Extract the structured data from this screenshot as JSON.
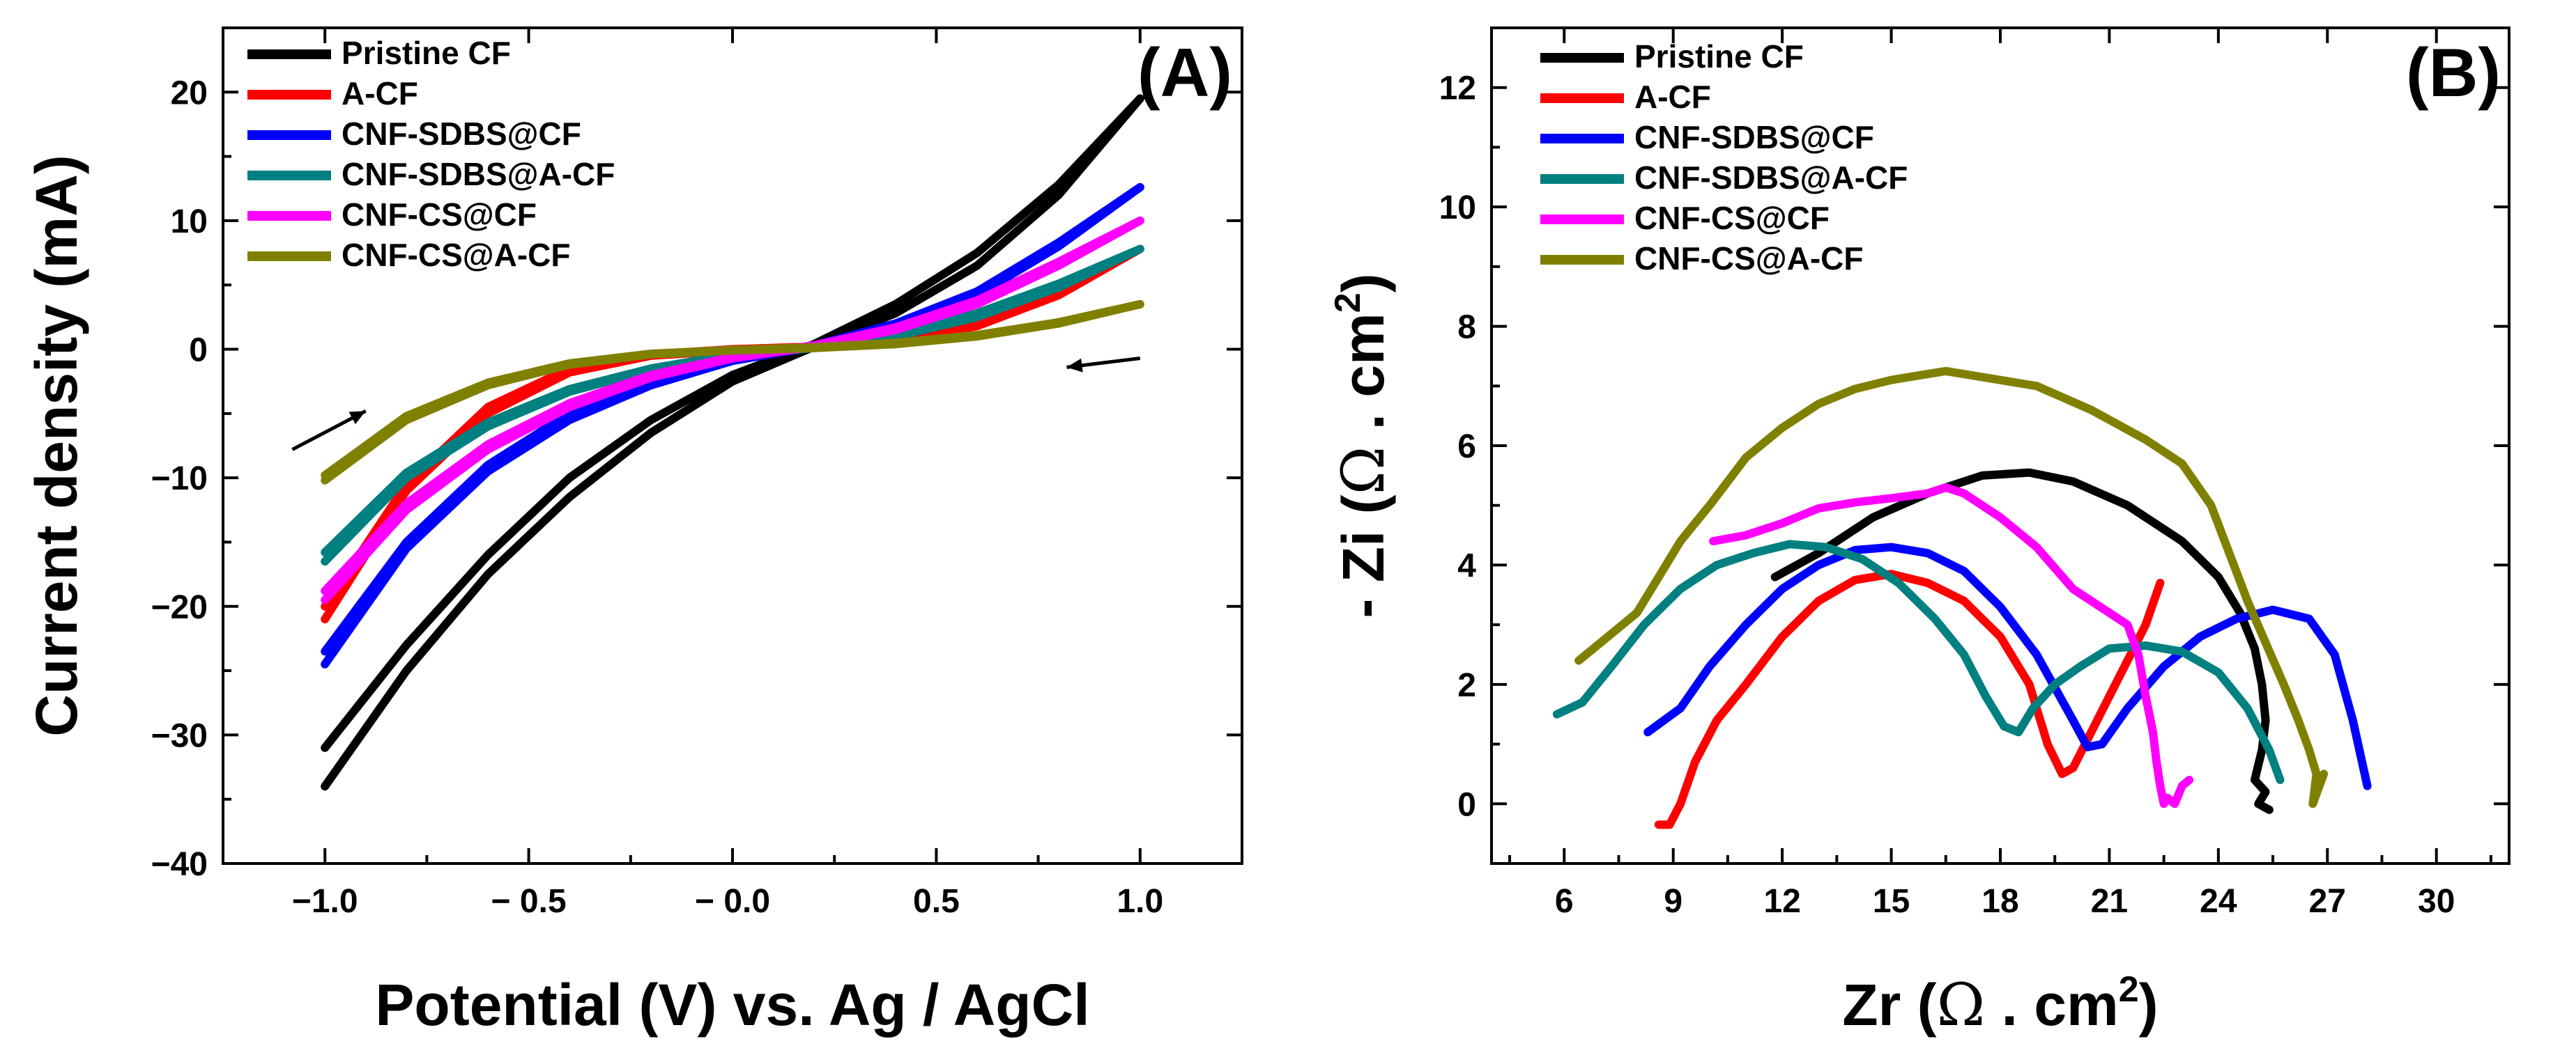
{
  "chart_data": [
    {
      "panel": "(A)",
      "type": "line",
      "xlabel": "Potential (V) vs. Ag / AgCl",
      "ylabel": "Current density (mA)",
      "xlim": [
        -1.25,
        1.25
      ],
      "ylim": [
        -40,
        25
      ],
      "xticks": [
        -1.0,
        -0.5,
        0.0,
        0.5,
        1.0
      ],
      "xtick_labels": [
        "−1.0",
        "− 0.5",
        "− 0.0",
        "0.5",
        "1.0"
      ],
      "yticks": [
        -40,
        -30,
        -20,
        -10,
        0,
        10,
        20
      ],
      "ytick_labels": [
        "−40",
        "−30",
        "−20",
        "−10",
        "0",
        "10",
        "20"
      ],
      "legend_position": "top-left",
      "series": [
        {
          "name": "Pristine CF",
          "color": "#000000",
          "x": [
            -1.0,
            -0.8,
            -0.6,
            -0.4,
            -0.2,
            0.0,
            0.2,
            0.4,
            0.6,
            0.8,
            1.0
          ],
          "forward": [
            -34,
            -25,
            -17.5,
            -11.5,
            -6.5,
            -2.5,
            0.2,
            2.8,
            6.5,
            12,
            19.5
          ],
          "backward": [
            -31,
            -23,
            -16,
            -10,
            -5.5,
            -2.0,
            0.4,
            3.5,
            7.5,
            12.8,
            19.5
          ]
        },
        {
          "name": "A-CF",
          "color": "#ff0000",
          "x": [
            -1.0,
            -0.8,
            -0.6,
            -0.4,
            -0.2,
            0.0,
            0.2,
            0.4,
            0.6,
            0.8,
            1.0
          ],
          "forward": [
            -21,
            -11,
            -5,
            -1.8,
            -0.5,
            -0.1,
            0.1,
            0.6,
            1.8,
            4.2,
            7.8
          ],
          "backward": [
            -20,
            -10.5,
            -4.5,
            -1.5,
            -0.4,
            0.0,
            0.2,
            0.8,
            2.2,
            4.8,
            7.8
          ]
        },
        {
          "name": "CNF-SDBS@CF",
          "color": "#0000ff",
          "x": [
            -1.0,
            -0.8,
            -0.6,
            -0.4,
            -0.2,
            0.0,
            0.2,
            0.4,
            0.6,
            0.8,
            1.0
          ],
          "forward": [
            -24.5,
            -15.5,
            -9.5,
            -5.5,
            -2.8,
            -0.9,
            0.2,
            1.8,
            4.2,
            8.0,
            12.6
          ],
          "backward": [
            -23.5,
            -15,
            -9,
            -5,
            -2.5,
            -0.7,
            0.3,
            2.0,
            4.5,
            8.3,
            12.6
          ]
        },
        {
          "name": "CNF-SDBS@A-CF",
          "color": "#008080",
          "x": [
            -1.0,
            -0.8,
            -0.6,
            -0.4,
            -0.2,
            0.0,
            0.2,
            0.4,
            0.6,
            0.8,
            1.0
          ],
          "forward": [
            -16.5,
            -10,
            -6,
            -3.3,
            -1.6,
            -0.5,
            0.1,
            1.0,
            2.5,
            4.8,
            7.8
          ],
          "backward": [
            -15.8,
            -9.6,
            -5.7,
            -3.1,
            -1.5,
            -0.4,
            0.2,
            1.2,
            2.8,
            5.1,
            7.8
          ]
        },
        {
          "name": "CNF-CS@CF",
          "color": "#ff00ff",
          "x": [
            -1.0,
            -0.8,
            -0.6,
            -0.4,
            -0.2,
            0.0,
            0.2,
            0.4,
            0.6,
            0.8,
            1.0
          ],
          "forward": [
            -19.5,
            -12.5,
            -7.8,
            -4.5,
            -2.2,
            -0.7,
            0.2,
            1.5,
            3.5,
            6.5,
            10.0
          ],
          "backward": [
            -18.8,
            -12,
            -7.4,
            -4.2,
            -2.0,
            -0.6,
            0.3,
            1.7,
            3.8,
            6.8,
            10.0
          ]
        },
        {
          "name": "CNF-CS@A-CF",
          "color": "#808000",
          "x": [
            -1.0,
            -0.8,
            -0.6,
            -0.4,
            -0.2,
            0.0,
            0.2,
            0.4,
            0.6,
            0.8,
            1.0
          ],
          "forward": [
            -10.2,
            -5.5,
            -2.8,
            -1.2,
            -0.4,
            -0.1,
            0.1,
            0.4,
            1.0,
            2.0,
            3.5
          ],
          "backward": [
            -9.8,
            -5.2,
            -2.6,
            -1.1,
            -0.35,
            -0.05,
            0.15,
            0.5,
            1.1,
            2.1,
            3.5
          ]
        }
      ],
      "annotations": [
        {
          "type": "arrow",
          "from": [
            -1.08,
            -7.8
          ],
          "to": [
            -0.9,
            -4.8
          ]
        },
        {
          "type": "arrow",
          "from": [
            1.0,
            -0.7
          ],
          "to": [
            0.82,
            -1.4
          ]
        }
      ]
    },
    {
      "panel": "(B)",
      "type": "line",
      "xlabel_main": "Zr (",
      "xlabel_sym": "Ω",
      "xlabel_unit": " . cm",
      "xlabel_sup": "2",
      "xlabel_close": ")",
      "ylabel_main": "- Zi (",
      "ylabel_sym": "Ω",
      "ylabel_unit": " . cm",
      "ylabel_sup": "2",
      "ylabel_close": ")",
      "xlim": [
        4,
        32
      ],
      "ylim": [
        -1,
        13
      ],
      "xticks": [
        6,
        9,
        12,
        15,
        18,
        21,
        24,
        27,
        30
      ],
      "xtick_labels": [
        "6",
        "9",
        "12",
        "15",
        "18",
        "21",
        "24",
        "27",
        "30"
      ],
      "yticks": [
        0,
        2,
        4,
        6,
        8,
        10,
        12
      ],
      "ytick_labels": [
        "0",
        "2",
        "4",
        "6",
        "8",
        "10",
        "12"
      ],
      "legend_position": "top-left",
      "series": [
        {
          "name": "Pristine CF",
          "color": "#000000",
          "x": [
            11.8,
            13,
            14.5,
            16,
            17.5,
            18.8,
            20,
            21.5,
            23,
            24,
            24.6,
            25.0,
            25.2,
            25.3,
            25.2,
            25.0,
            25.3,
            25.1,
            25.4
          ],
          "y": [
            3.8,
            4.2,
            4.8,
            5.2,
            5.5,
            5.55,
            5.4,
            5.0,
            4.4,
            3.8,
            3.2,
            2.6,
            2.0,
            1.4,
            0.9,
            0.4,
            0.2,
            0.0,
            -0.1
          ]
        },
        {
          "name": "A-CF",
          "color": "#ff0000",
          "x": [
            8.6,
            8.9,
            9.2,
            9.6,
            10.2,
            11,
            12,
            13,
            14,
            15,
            16,
            17,
            18,
            18.8,
            19.3,
            19.7,
            20.0,
            20.5,
            21.0,
            21.5,
            22.0,
            22.4
          ],
          "y": [
            -0.35,
            -0.35,
            0.0,
            0.7,
            1.4,
            2.0,
            2.8,
            3.4,
            3.75,
            3.85,
            3.7,
            3.4,
            2.8,
            2.0,
            1.0,
            0.5,
            0.6,
            1.2,
            1.8,
            2.4,
            3.0,
            3.7
          ]
        },
        {
          "name": "CNF-SDBS@CF",
          "color": "#0000ff",
          "x": [
            8.3,
            9.2,
            10,
            11,
            12,
            13,
            14,
            15,
            16,
            17,
            18,
            19,
            20,
            20.4,
            20.8,
            21.5,
            22.5,
            23.5,
            24.5,
            25.5,
            26.5,
            27.2,
            27.7,
            28.1
          ],
          "y": [
            1.2,
            1.6,
            2.3,
            3.0,
            3.6,
            4.0,
            4.25,
            4.3,
            4.2,
            3.9,
            3.3,
            2.5,
            1.4,
            0.95,
            1.0,
            1.6,
            2.3,
            2.8,
            3.1,
            3.25,
            3.1,
            2.5,
            1.4,
            0.3
          ]
        },
        {
          "name": "CNF-SDBS@A-CF",
          "color": "#008080",
          "x": [
            5.8,
            6.5,
            7.3,
            8.2,
            9.2,
            10.2,
            11.2,
            12.2,
            13.2,
            14.2,
            15.2,
            16.2,
            17.0,
            17.6,
            18.1,
            18.5,
            18.9,
            19.5,
            20.2,
            21.0,
            22.0,
            23.0,
            24.0,
            24.8,
            25.4,
            25.7
          ],
          "y": [
            1.5,
            1.7,
            2.3,
            3.0,
            3.6,
            4.0,
            4.2,
            4.35,
            4.3,
            4.1,
            3.7,
            3.1,
            2.5,
            1.8,
            1.3,
            1.2,
            1.6,
            2.0,
            2.3,
            2.6,
            2.65,
            2.55,
            2.2,
            1.6,
            0.9,
            0.4
          ]
        },
        {
          "name": "CNF-CS@CF",
          "color": "#ff00ff",
          "x": [
            10.1,
            11,
            12,
            13,
            14,
            15,
            16,
            16.5,
            17,
            18,
            19,
            20,
            21,
            21.5,
            21.8,
            22.0,
            22.2,
            22.3,
            22.4,
            22.5,
            22.6,
            22.8,
            23.0,
            23.2
          ],
          "y": [
            4.4,
            4.5,
            4.7,
            4.95,
            5.05,
            5.12,
            5.2,
            5.3,
            5.2,
            4.8,
            4.3,
            3.6,
            3.2,
            3.0,
            2.5,
            1.8,
            1.2,
            0.7,
            0.3,
            0.0,
            0.1,
            0.0,
            0.3,
            0.4
          ]
        },
        {
          "name": "CNF-CS@A-CF",
          "color": "#808000",
          "x": [
            6.4,
            7.2,
            8.0,
            8.6,
            9.2,
            10,
            11,
            12,
            13,
            14,
            15,
            16,
            16.5,
            17.5,
            19,
            20.5,
            22,
            23,
            23.8,
            24.3,
            24.8,
            25.3,
            25.8,
            26.2,
            26.5,
            26.7,
            26.6,
            26.9
          ],
          "y": [
            2.4,
            2.8,
            3.2,
            3.8,
            4.4,
            5.0,
            5.8,
            6.3,
            6.7,
            6.95,
            7.1,
            7.2,
            7.25,
            7.15,
            7.0,
            6.6,
            6.1,
            5.7,
            5.0,
            4.2,
            3.4,
            2.7,
            2.0,
            1.4,
            0.9,
            0.5,
            0.0,
            0.5
          ]
        }
      ]
    }
  ]
}
